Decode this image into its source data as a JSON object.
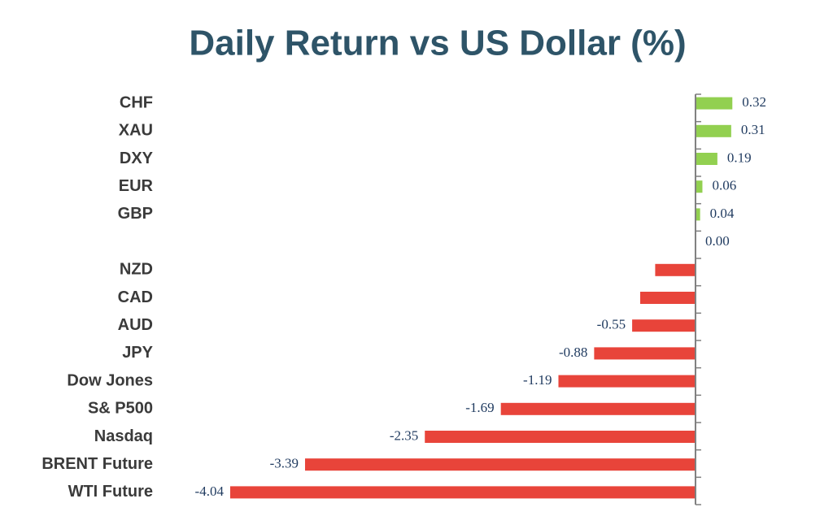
{
  "chart_data": {
    "type": "barh",
    "title": "Daily Return vs US Dollar (%)",
    "categories": [
      "CHF",
      "XAU",
      "DXY",
      "EUR",
      "GBP",
      null,
      "NZD",
      "CAD",
      "AUD",
      "JPY",
      "Dow Jones",
      "S& P500",
      "Nasdaq",
      "BRENT Future",
      "WTI Future"
    ],
    "values": [
      0.32,
      0.31,
      0.19,
      0.06,
      0.04,
      0,
      -0.35,
      -0.48,
      -0.55,
      -0.88,
      -1.19,
      -1.69,
      -2.35,
      -3.39,
      -4.04
    ],
    "value_labels": [
      "0.32",
      "0.31",
      "0.19",
      "0.06",
      "0.04",
      "0.00",
      null,
      null,
      "-0.55",
      "-0.88",
      "-1.19",
      "-1.69",
      "-2.35",
      "-3.39",
      "-4.04"
    ],
    "positive_color": "#92d050",
    "negative_color": "#e8443a",
    "xlim": [
      -4.2,
      0.4
    ]
  }
}
